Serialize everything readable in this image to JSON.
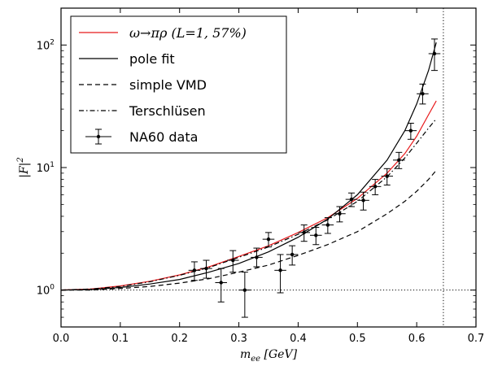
{
  "chart_data": {
    "type": "line",
    "xlabel": "m_ee [GeV]",
    "ylabel": "|F|^2",
    "xlim": [
      0.0,
      0.7
    ],
    "ylim": [
      0.5,
      200
    ],
    "yscale": "log",
    "x_ticks": [
      0.0,
      0.1,
      0.2,
      0.3,
      0.4,
      0.5,
      0.6,
      0.7
    ],
    "x_tick_labels": [
      "0.0",
      "0.1",
      "0.2",
      "0.3",
      "0.4",
      "0.5",
      "0.6",
      "0.7"
    ],
    "y_ticks": [
      1,
      10,
      100
    ],
    "y_tick_labels": [
      "10^0",
      "10^1",
      "10^2"
    ],
    "grid": false,
    "legend_position": "top-left",
    "series": [
      {
        "name": "ω→πρ (L=1, 57%)",
        "style": "solid",
        "color": "#e8191b",
        "x": [
          0.0,
          0.05,
          0.1,
          0.15,
          0.2,
          0.25,
          0.3,
          0.35,
          0.4,
          0.45,
          0.5,
          0.55,
          0.58,
          0.6,
          0.62,
          0.633
        ],
        "y": [
          1.0,
          1.02,
          1.08,
          1.18,
          1.33,
          1.55,
          1.88,
          2.3,
          2.95,
          3.9,
          5.6,
          9.0,
          13.0,
          18.0,
          27.0,
          35.0
        ]
      },
      {
        "name": "pole fit",
        "style": "solid",
        "color": "#000000",
        "x": [
          0.0,
          0.05,
          0.1,
          0.15,
          0.2,
          0.25,
          0.3,
          0.35,
          0.4,
          0.45,
          0.5,
          0.55,
          0.58,
          0.6,
          0.62,
          0.633
        ],
        "y": [
          1.0,
          1.01,
          1.05,
          1.12,
          1.22,
          1.4,
          1.65,
          2.05,
          2.7,
          3.8,
          6.0,
          11.5,
          20.0,
          33.0,
          62.0,
          105.0
        ]
      },
      {
        "name": "simple VMD",
        "style": "dashed",
        "color": "#000000",
        "x": [
          0.0,
          0.05,
          0.1,
          0.15,
          0.2,
          0.25,
          0.3,
          0.35,
          0.4,
          0.45,
          0.5,
          0.55,
          0.58,
          0.6,
          0.62,
          0.633
        ],
        "y": [
          1.0,
          1.0,
          1.03,
          1.07,
          1.14,
          1.24,
          1.4,
          1.6,
          1.92,
          2.35,
          3.0,
          4.2,
          5.3,
          6.4,
          8.0,
          9.5
        ]
      },
      {
        "name": "Terschlüsen",
        "style": "dashdot",
        "color": "#000000",
        "x": [
          0.0,
          0.05,
          0.1,
          0.15,
          0.2,
          0.25,
          0.3,
          0.35,
          0.4,
          0.45,
          0.5,
          0.55,
          0.58,
          0.6,
          0.62,
          0.633
        ],
        "y": [
          1.0,
          1.02,
          1.07,
          1.17,
          1.32,
          1.53,
          1.85,
          2.25,
          2.85,
          3.75,
          5.3,
          8.4,
          12.0,
          15.8,
          21.0,
          25.0
        ]
      }
    ],
    "data_series": {
      "name": "NA60 data",
      "points": [
        {
          "x": 0.225,
          "y": 1.45,
          "xerr": 0.01,
          "ylo": 1.2,
          "yhi": 1.7
        },
        {
          "x": 0.245,
          "y": 1.5,
          "xerr": 0.01,
          "ylo": 1.25,
          "yhi": 1.75
        },
        {
          "x": 0.27,
          "y": 1.15,
          "xerr": 0.01,
          "ylo": 0.8,
          "yhi": 1.5
        },
        {
          "x": 0.29,
          "y": 1.75,
          "xerr": 0.01,
          "ylo": 1.4,
          "yhi": 2.1
        },
        {
          "x": 0.31,
          "y": 1.0,
          "xerr": 0.01,
          "ylo": 0.6,
          "yhi": 1.4
        },
        {
          "x": 0.33,
          "y": 1.85,
          "xerr": 0.01,
          "ylo": 1.55,
          "yhi": 2.2
        },
        {
          "x": 0.35,
          "y": 2.6,
          "xerr": 0.01,
          "ylo": 2.25,
          "yhi": 2.95
        },
        {
          "x": 0.37,
          "y": 1.45,
          "xerr": 0.01,
          "ylo": 0.95,
          "yhi": 1.95
        },
        {
          "x": 0.39,
          "y": 1.95,
          "xerr": 0.01,
          "ylo": 1.6,
          "yhi": 2.3
        },
        {
          "x": 0.41,
          "y": 2.95,
          "xerr": 0.01,
          "ylo": 2.5,
          "yhi": 3.4
        },
        {
          "x": 0.43,
          "y": 2.8,
          "xerr": 0.01,
          "ylo": 2.35,
          "yhi": 3.25
        },
        {
          "x": 0.45,
          "y": 3.4,
          "xerr": 0.01,
          "ylo": 2.9,
          "yhi": 3.9
        },
        {
          "x": 0.47,
          "y": 4.2,
          "xerr": 0.01,
          "ylo": 3.6,
          "yhi": 4.8
        },
        {
          "x": 0.49,
          "y": 5.5,
          "xerr": 0.01,
          "ylo": 4.8,
          "yhi": 6.2
        },
        {
          "x": 0.51,
          "y": 5.4,
          "xerr": 0.01,
          "ylo": 4.5,
          "yhi": 6.3
        },
        {
          "x": 0.53,
          "y": 7.0,
          "xerr": 0.01,
          "ylo": 6.0,
          "yhi": 8.0
        },
        {
          "x": 0.55,
          "y": 8.5,
          "xerr": 0.01,
          "ylo": 7.2,
          "yhi": 9.8
        },
        {
          "x": 0.57,
          "y": 11.5,
          "xerr": 0.01,
          "ylo": 9.8,
          "yhi": 13.3
        },
        {
          "x": 0.59,
          "y": 20.0,
          "xerr": 0.01,
          "ylo": 17.0,
          "yhi": 23.0
        },
        {
          "x": 0.61,
          "y": 40.0,
          "xerr": 0.01,
          "ylo": 33.0,
          "yhi": 48.0
        },
        {
          "x": 0.63,
          "y": 85.0,
          "xerr": 0.01,
          "ylo": 62.0,
          "yhi": 112.0
        }
      ]
    },
    "reference_lines": {
      "horizontal_y": 1.0,
      "vertical_x": 0.645
    }
  },
  "legend": {
    "entries": [
      {
        "label": "ω→πρ (L=1, 57%)",
        "style": "solid",
        "color": "#e8191b"
      },
      {
        "label": "pole fit",
        "style": "solid",
        "color": "#000000"
      },
      {
        "label": "simple VMD",
        "style": "dashed",
        "color": "#000000"
      },
      {
        "label": "Terschlüsen",
        "style": "dashdot",
        "color": "#000000"
      },
      {
        "label": "NA60 data",
        "style": "errorbar",
        "color": "#000000"
      }
    ]
  }
}
